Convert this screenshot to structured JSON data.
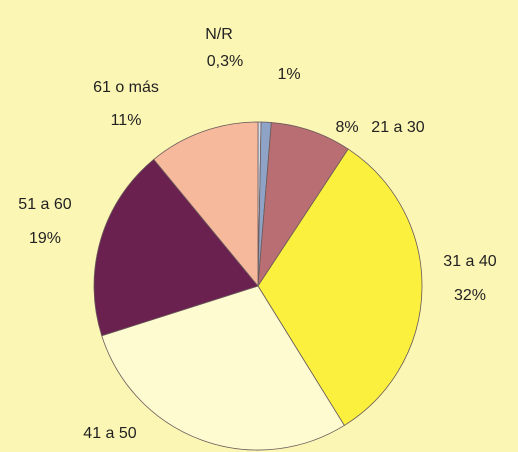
{
  "chart_data": {
    "type": "pie",
    "categories": [
      "N/R",
      null,
      "21 a 30",
      "31 a 40",
      "41 a 50",
      "51 a 60",
      "61 o más"
    ],
    "values": [
      0.3,
      1,
      8,
      32,
      29,
      19,
      11
    ],
    "value_labels": [
      "0,3%",
      "1%",
      "8%",
      "32%",
      null,
      "19%",
      "11%"
    ],
    "colors": [
      "#d4dcec",
      "#8fa3c6",
      "#b86e72",
      "#fbf03e",
      "#fdfbcf",
      "#6b2150",
      "#f7b99c"
    ]
  }
}
